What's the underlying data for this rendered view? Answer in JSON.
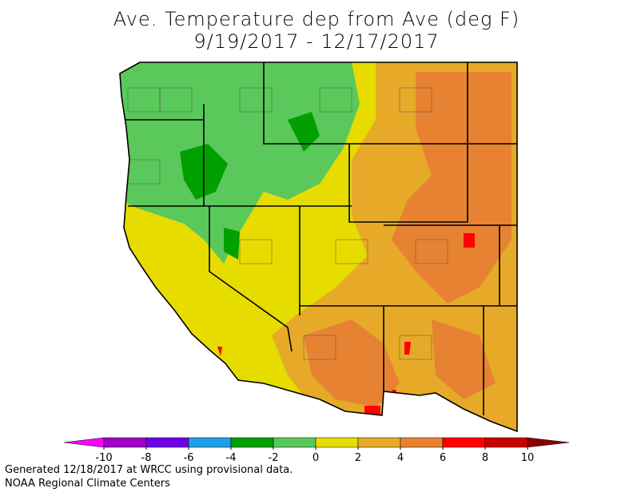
{
  "title": [
    "Ave. Temperature dep from Ave (deg F)",
    "9/19/2017 - 12/17/2017"
  ],
  "legend": {
    "ticks": [
      -10,
      -8,
      -6,
      -4,
      -2,
      0,
      2,
      4,
      6,
      8,
      10
    ],
    "under_color": "#ff00ff",
    "colors": [
      "#a000c8",
      "#6e00e6",
      "#1ea0e6",
      "#00a000",
      "#5ac85a",
      "#e6dc00",
      "#e6aa28",
      "#e68232",
      "#ff0000",
      "#c80000"
    ],
    "over_color": "#8c0000"
  },
  "footer": [
    "Generated 12/18/2017 at WRCC using provisional data.",
    "NOAA Regional Climate Centers"
  ]
}
